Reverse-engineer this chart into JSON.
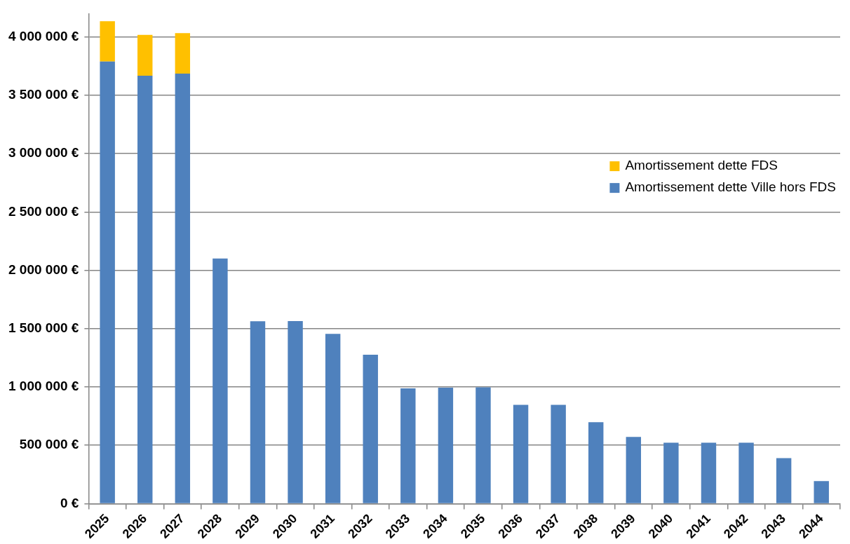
{
  "chart_data": {
    "type": "bar",
    "stacked": true,
    "categories": [
      "2025",
      "2026",
      "2027",
      "2028",
      "2029",
      "2030",
      "2031",
      "2032",
      "2033",
      "2034",
      "2035",
      "2036",
      "2037",
      "2038",
      "2039",
      "2040",
      "2041",
      "2042",
      "2043",
      "2044"
    ],
    "series": [
      {
        "name": "Amortissement dette Ville hors FDS",
        "color": "#4f81bd",
        "values": [
          3790000,
          3668000,
          3686000,
          2101000,
          1563000,
          1565000,
          1455000,
          1277000,
          988000,
          994000,
          997000,
          846000,
          846000,
          698000,
          572000,
          522000,
          522000,
          522000,
          390000,
          193000
        ]
      },
      {
        "name": "Amortissement dette FDS",
        "color": "#ffc000",
        "values": [
          345000,
          350000,
          347000,
          null,
          null,
          null,
          null,
          null,
          null,
          null,
          null,
          null,
          null,
          null,
          null,
          null,
          null,
          null,
          null,
          null
        ]
      }
    ],
    "ylim": [
      0,
      4200000
    ],
    "yticks": [
      {
        "value": 0,
        "label": "0 €"
      },
      {
        "value": 500000,
        "label": "500 000 €"
      },
      {
        "value": 1000000,
        "label": "1 000 000 €"
      },
      {
        "value": 1500000,
        "label": "1 500 000 €"
      },
      {
        "value": 2000000,
        "label": "2 000 000 €"
      },
      {
        "value": 2500000,
        "label": "2 500 000 €"
      },
      {
        "value": 3000000,
        "label": "3 000 000 €"
      },
      {
        "value": 3500000,
        "label": "3 500 000 €"
      },
      {
        "value": 4000000,
        "label": "4 000 000 €"
      }
    ],
    "grid": "y",
    "legend": "right"
  }
}
